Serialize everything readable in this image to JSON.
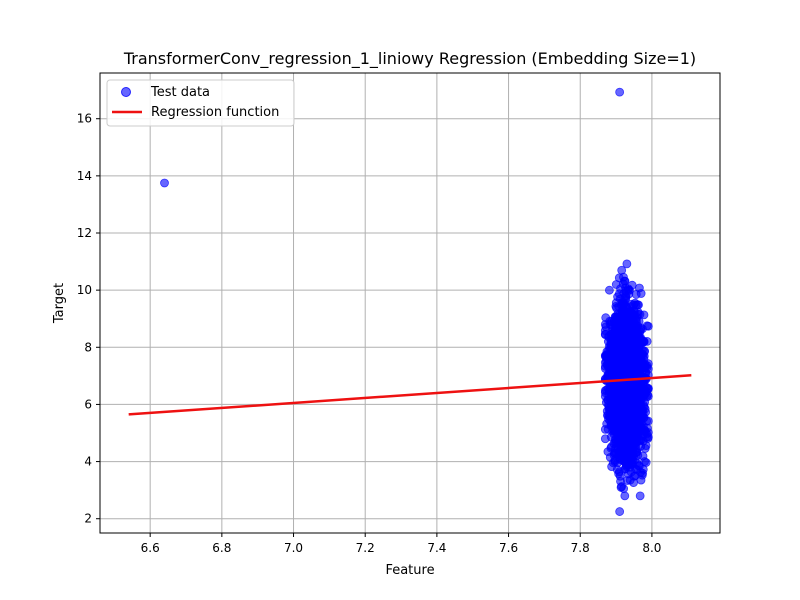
{
  "chart_data": {
    "type": "scatter",
    "title": "TransformerConv_regression_1_liniowy Regression (Embedding Size=1)",
    "xlabel": "Feature",
    "ylabel": "Target",
    "xlim": [
      6.46,
      8.19
    ],
    "ylim": [
      1.5,
      17.6
    ],
    "xticks": [
      "6.6",
      "6.8",
      "7.0",
      "7.2",
      "7.4",
      "7.6",
      "7.8",
      "8.0"
    ],
    "yticks": [
      "2",
      "4",
      "6",
      "8",
      "10",
      "12",
      "14",
      "16"
    ],
    "grid": true,
    "legend_position": "top-left",
    "series": [
      {
        "name": "Test data",
        "kind": "scatter",
        "color": "#0000ff",
        "outliers": [
          [
            6.64,
            13.75
          ],
          [
            7.91,
            16.93
          ],
          [
            7.91,
            2.25
          ]
        ],
        "cluster": {
          "x_range": [
            7.87,
            7.99
          ],
          "y_range": [
            2.8,
            11.2
          ],
          "y_center": 6.7
        }
      },
      {
        "name": "Regression function",
        "kind": "line",
        "color": "#ee1111",
        "x": [
          6.54,
          8.11
        ],
        "y": [
          5.65,
          7.02
        ]
      }
    ]
  }
}
